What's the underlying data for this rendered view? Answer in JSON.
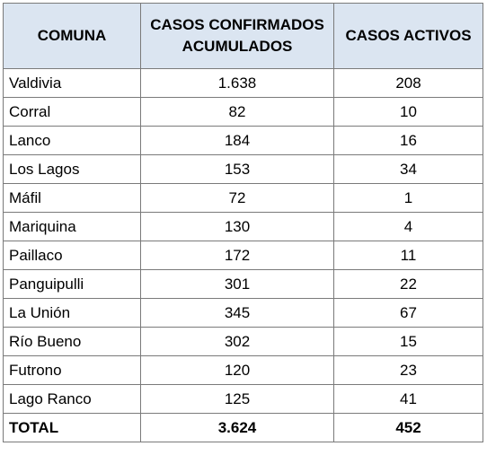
{
  "headers": {
    "comuna": "COMUNA",
    "confirmados_line1": "CASOS CONFIRMADOS",
    "confirmados_line2": "ACUMULADOS",
    "activos": "CASOS ACTIVOS"
  },
  "rows": [
    {
      "comuna": "Valdivia",
      "confirmados": "1.638",
      "activos": "208"
    },
    {
      "comuna": "Corral",
      "confirmados": "82",
      "activos": "10"
    },
    {
      "comuna": "Lanco",
      "confirmados": "184",
      "activos": "16"
    },
    {
      "comuna": "Los Lagos",
      "confirmados": "153",
      "activos": "34"
    },
    {
      "comuna": "Máfil",
      "confirmados": "72",
      "activos": "1"
    },
    {
      "comuna": "Mariquina",
      "confirmados": "130",
      "activos": "4"
    },
    {
      "comuna": "Paillaco",
      "confirmados": "172",
      "activos": "11"
    },
    {
      "comuna": "Panguipulli",
      "confirmados": "301",
      "activos": "22"
    },
    {
      "comuna": "La Unión",
      "confirmados": "345",
      "activos": "67"
    },
    {
      "comuna": "Río Bueno",
      "confirmados": "302",
      "activos": "15"
    },
    {
      "comuna": "Futrono",
      "confirmados": "120",
      "activos": "23"
    },
    {
      "comuna": "Lago Ranco",
      "confirmados": "125",
      "activos": "41"
    }
  ],
  "total": {
    "label": "TOTAL",
    "confirmados": "3.624",
    "activos": "452"
  },
  "colors": {
    "header_bg": "#dbe5f1",
    "border": "#7a7a7a"
  }
}
